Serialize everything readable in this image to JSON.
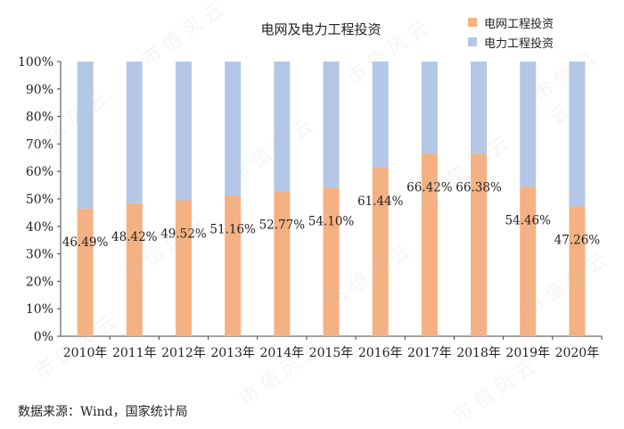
{
  "colors": {
    "grid": "#ffffff",
    "axis": "#444444",
    "series_a": "#f4b183",
    "series_b": "#b4c7e7"
  },
  "watermark_text": "市值风云",
  "source_note": "数据来源：Wind，国家统计局",
  "chart_data": {
    "type": "bar",
    "stacked": true,
    "title": "电网及电力工程投资",
    "categories": [
      "2010年",
      "2011年",
      "2012年",
      "2013年",
      "2014年",
      "2015年",
      "2016年",
      "2017年",
      "2018年",
      "2019年",
      "2020年"
    ],
    "series": [
      {
        "name": "电网工程投资",
        "values": [
          46.49,
          48.42,
          49.52,
          51.16,
          52.77,
          54.1,
          61.44,
          66.42,
          66.38,
          54.46,
          47.26
        ]
      },
      {
        "name": "电力工程投资",
        "values": [
          53.51,
          51.58,
          50.48,
          48.84,
          47.23,
          45.9,
          38.56,
          33.58,
          33.62,
          45.54,
          52.74
        ]
      }
    ],
    "data_labels": [
      "46.49%",
      "48.42%",
      "49.52%",
      "51.16%",
      "52.77%",
      "54.10%",
      "61.44%",
      "66.42%",
      "66.38%",
      "54.46%",
      "47.26%"
    ],
    "y_ticks": [
      "0%",
      "10%",
      "20%",
      "30%",
      "40%",
      "50%",
      "60%",
      "70%",
      "80%",
      "90%",
      "100%"
    ],
    "ylim": [
      0,
      100
    ],
    "legend_position": "top-right",
    "grid": false
  }
}
